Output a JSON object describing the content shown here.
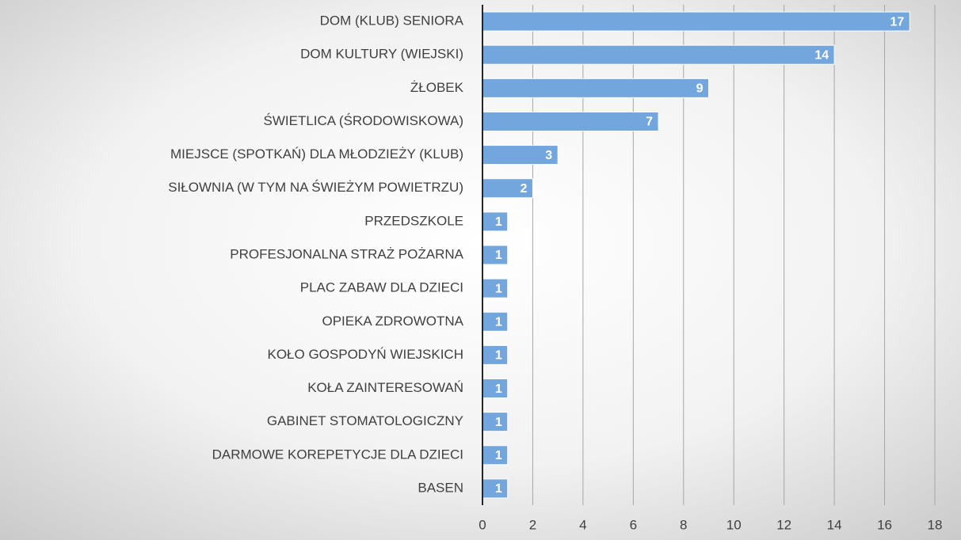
{
  "chart_data": {
    "type": "bar",
    "orientation": "horizontal",
    "categories": [
      "DOM (KLUB) SENIORA",
      "DOM KULTURY (WIEJSKI)",
      "ŻŁOBEK",
      "ŚWIETLICA (ŚRODOWISKOWA)",
      "MIEJSCE (SPOTKAŃ) DLA MŁODZIEŻY (KLUB)",
      "SIŁOWNIA (W TYM NA ŚWIEŻYM POWIETRZU)",
      "PRZEDSZKOLE",
      "PROFESJONALNA STRAŻ POŻARNA",
      "PLAC ZABAW DLA DZIECI",
      "OPIEKA ZDROWOTNA",
      "KOŁO GOSPODYŃ WIEJSKICH",
      "KOŁA ZAINTERESOWAŃ",
      "GABINET STOMATOLOGICZNY",
      "DARMOWE KOREPETYCJE DLA DZIECI",
      "BASEN"
    ],
    "values": [
      17,
      14,
      9,
      7,
      3,
      2,
      1,
      1,
      1,
      1,
      1,
      1,
      1,
      1,
      1
    ],
    "color": "#72a6dc",
    "xlim": [
      0,
      18
    ],
    "xticks": [
      0,
      2,
      4,
      6,
      8,
      10,
      12,
      14,
      16,
      18
    ],
    "grid": true
  }
}
